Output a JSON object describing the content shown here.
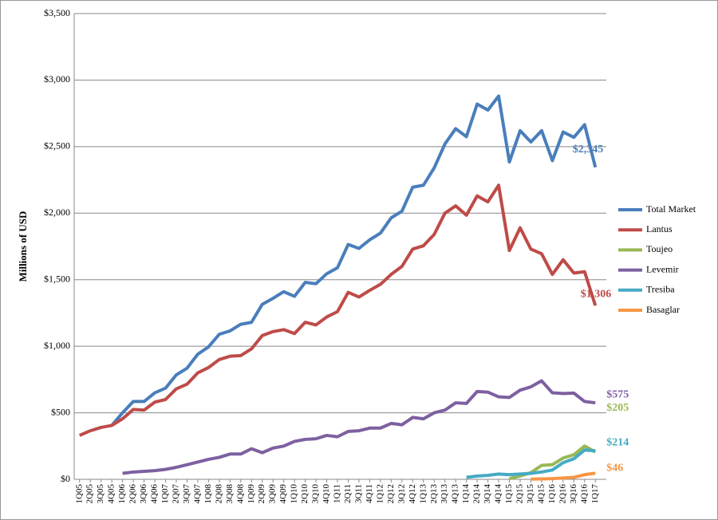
{
  "chart_data": {
    "type": "line",
    "y_label": "Millions of USD",
    "categories": [
      "1Q05",
      "2Q05",
      "3Q05",
      "4Q05",
      "1Q06",
      "2Q06",
      "3Q06",
      "4Q06",
      "1Q07",
      "2Q07",
      "3Q07",
      "4Q07",
      "1Q08",
      "2Q08",
      "3Q08",
      "4Q08",
      "1Q09",
      "2Q09",
      "3Q09",
      "4Q09",
      "1Q10",
      "2Q10",
      "3Q10",
      "4Q10",
      "1Q11",
      "2Q11",
      "3Q11",
      "4Q11",
      "1Q12",
      "2Q12",
      "3Q12",
      "4Q12",
      "1Q13",
      "2Q13",
      "3Q13",
      "4Q13",
      "1Q14",
      "2Q14",
      "3Q14",
      "4Q14",
      "1Q15",
      "2Q15",
      "3Q15",
      "4Q15",
      "1Q16",
      "2Q16",
      "3Q16",
      "4Q16",
      "1Q17"
    ],
    "ylim": [
      0,
      3500
    ],
    "yticks": [
      {
        "value": 0,
        "label": "$0"
      },
      {
        "value": 500,
        "label": "$500"
      },
      {
        "value": 1000,
        "label": "$1,000"
      },
      {
        "value": 1500,
        "label": "$1,500"
      },
      {
        "value": 2000,
        "label": "$2,000"
      },
      {
        "value": 2500,
        "label": "$2,500"
      },
      {
        "value": 3000,
        "label": "$3,000"
      },
      {
        "value": 3500,
        "label": "$3,500"
      }
    ],
    "grid": true,
    "legend": "right",
    "series": [
      {
        "name": "Total Market",
        "color": "#4a7ebb",
        "values": [
          null,
          null,
          null,
          405,
          500,
          585,
          585,
          650,
          685,
          785,
          835,
          940,
          995,
          1090,
          1115,
          1165,
          1180,
          1315,
          1360,
          1410,
          1375,
          1480,
          1470,
          1545,
          1590,
          1765,
          1735,
          1800,
          1850,
          1965,
          2015,
          2195,
          2210,
          2340,
          2520,
          2635,
          2575,
          2820,
          2775,
          2880,
          2385,
          2620,
          2535,
          2620,
          2395,
          2610,
          2570,
          2665,
          2345
        ],
        "value_labels": [
          null,
          null,
          null,
          null,
          null,
          null,
          null,
          null,
          null,
          null,
          null,
          null,
          null,
          null,
          null,
          null,
          null,
          null,
          null,
          null,
          null,
          null,
          null,
          null,
          null,
          null,
          null,
          null,
          null,
          null,
          null,
          null,
          null,
          null,
          null,
          null,
          null,
          null,
          null,
          null,
          null,
          null,
          null,
          null,
          null,
          null,
          null,
          null,
          "$2,345"
        ]
      },
      {
        "name": "Lantus",
        "color": "#be4b48",
        "values": [
          330,
          365,
          390,
          405,
          455,
          525,
          520,
          580,
          600,
          680,
          715,
          800,
          840,
          900,
          925,
          930,
          980,
          1080,
          1110,
          1125,
          1095,
          1180,
          1160,
          1220,
          1260,
          1405,
          1370,
          1420,
          1465,
          1540,
          1600,
          1730,
          1755,
          1840,
          2000,
          2055,
          1985,
          2130,
          2085,
          2210,
          1720,
          1890,
          1730,
          1695,
          1540,
          1650,
          1550,
          1560,
          1306
        ],
        "value_labels": [
          null,
          null,
          null,
          null,
          null,
          null,
          null,
          null,
          null,
          null,
          null,
          null,
          null,
          null,
          null,
          null,
          null,
          null,
          null,
          null,
          null,
          null,
          null,
          null,
          null,
          null,
          null,
          null,
          null,
          null,
          null,
          null,
          null,
          null,
          null,
          null,
          null,
          null,
          null,
          null,
          null,
          null,
          null,
          null,
          null,
          null,
          null,
          null,
          "$1,306"
        ]
      },
      {
        "name": "Toujeo",
        "color": "#98b954",
        "values": [
          null,
          null,
          null,
          null,
          null,
          null,
          null,
          null,
          null,
          null,
          null,
          null,
          null,
          null,
          null,
          null,
          null,
          null,
          null,
          null,
          null,
          null,
          null,
          null,
          null,
          null,
          null,
          null,
          null,
          null,
          null,
          null,
          null,
          null,
          null,
          null,
          null,
          null,
          null,
          null,
          5,
          25,
          50,
          105,
          110,
          160,
          185,
          250,
          205
        ],
        "value_labels": [
          null,
          null,
          null,
          null,
          null,
          null,
          null,
          null,
          null,
          null,
          null,
          null,
          null,
          null,
          null,
          null,
          null,
          null,
          null,
          null,
          null,
          null,
          null,
          null,
          null,
          null,
          null,
          null,
          null,
          null,
          null,
          null,
          null,
          null,
          null,
          null,
          null,
          null,
          null,
          null,
          null,
          null,
          null,
          null,
          null,
          null,
          null,
          null,
          "$205"
        ]
      },
      {
        "name": "Levemir",
        "color": "#7d60a0",
        "values": [
          null,
          null,
          null,
          null,
          45,
          55,
          60,
          65,
          75,
          90,
          110,
          130,
          150,
          165,
          190,
          190,
          230,
          200,
          235,
          250,
          285,
          300,
          305,
          330,
          320,
          360,
          365,
          385,
          385,
          420,
          410,
          465,
          455,
          500,
          520,
          575,
          570,
          660,
          655,
          620,
          615,
          670,
          695,
          740,
          650,
          645,
          648,
          585,
          575
        ],
        "value_labels": [
          null,
          null,
          null,
          null,
          null,
          null,
          null,
          null,
          null,
          null,
          null,
          null,
          null,
          null,
          null,
          null,
          null,
          null,
          null,
          null,
          null,
          null,
          null,
          null,
          null,
          null,
          null,
          null,
          null,
          null,
          null,
          null,
          null,
          null,
          null,
          null,
          null,
          null,
          null,
          null,
          null,
          null,
          null,
          null,
          null,
          null,
          null,
          null,
          "$575"
        ]
      },
      {
        "name": "Tresiba",
        "color": "#46aac5",
        "values": [
          null,
          null,
          null,
          null,
          null,
          null,
          null,
          null,
          null,
          null,
          null,
          null,
          null,
          null,
          null,
          null,
          null,
          null,
          null,
          null,
          null,
          null,
          null,
          null,
          null,
          null,
          null,
          null,
          null,
          null,
          null,
          null,
          null,
          null,
          null,
          null,
          15,
          25,
          30,
          40,
          35,
          40,
          45,
          55,
          70,
          125,
          155,
          220,
          214
        ],
        "value_labels": [
          null,
          null,
          null,
          null,
          null,
          null,
          null,
          null,
          null,
          null,
          null,
          null,
          null,
          null,
          null,
          null,
          null,
          null,
          null,
          null,
          null,
          null,
          null,
          null,
          null,
          null,
          null,
          null,
          null,
          null,
          null,
          null,
          null,
          null,
          null,
          null,
          null,
          null,
          null,
          null,
          null,
          null,
          null,
          null,
          null,
          null,
          null,
          null,
          "$214"
        ]
      },
      {
        "name": "Basaglar",
        "color": "#f79646",
        "values": [
          null,
          null,
          null,
          null,
          null,
          null,
          null,
          null,
          null,
          null,
          null,
          null,
          null,
          null,
          null,
          null,
          null,
          null,
          null,
          null,
          null,
          null,
          null,
          null,
          null,
          null,
          null,
          null,
          null,
          null,
          null,
          null,
          null,
          null,
          null,
          null,
          null,
          null,
          null,
          null,
          null,
          null,
          2,
          3,
          5,
          10,
          15,
          35,
          46
        ],
        "value_labels": [
          null,
          null,
          null,
          null,
          null,
          null,
          null,
          null,
          null,
          null,
          null,
          null,
          null,
          null,
          null,
          null,
          null,
          null,
          null,
          null,
          null,
          null,
          null,
          null,
          null,
          null,
          null,
          null,
          null,
          null,
          null,
          null,
          null,
          null,
          null,
          null,
          null,
          null,
          null,
          null,
          null,
          null,
          null,
          null,
          null,
          null,
          null,
          null,
          "$46"
        ]
      }
    ]
  }
}
